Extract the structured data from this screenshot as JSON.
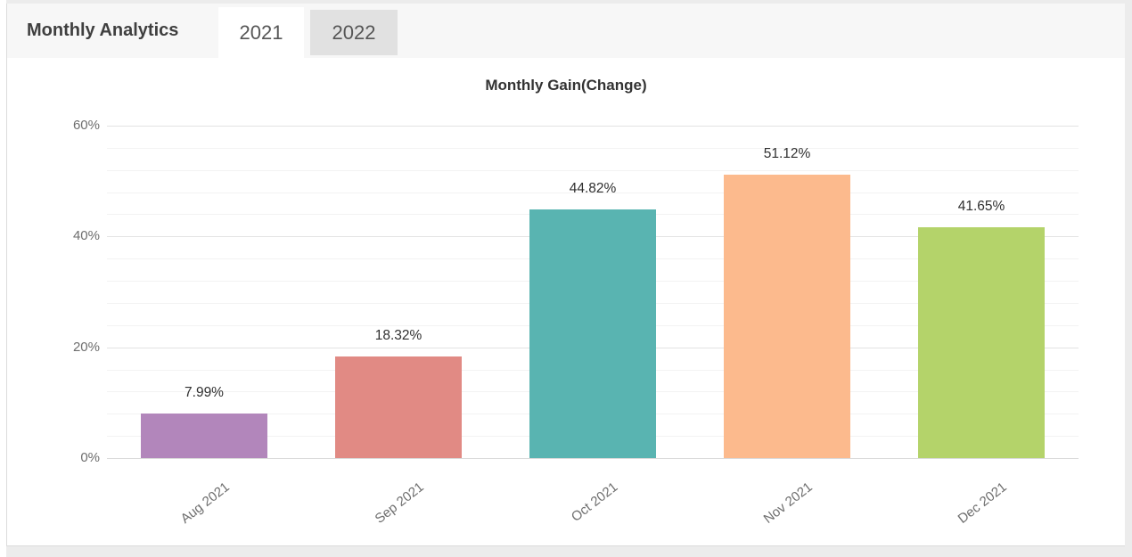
{
  "header": {
    "title": "Monthly Analytics",
    "tabs": [
      {
        "label": "2021",
        "active": true
      },
      {
        "label": "2022",
        "active": false
      }
    ]
  },
  "chart_data": {
    "type": "bar",
    "title": "Monthly Gain(Change)",
    "categories": [
      "Aug 2021",
      "Sep 2021",
      "Oct 2021",
      "Nov 2021",
      "Dec 2021"
    ],
    "values": [
      7.99,
      18.32,
      44.82,
      51.12,
      41.65
    ],
    "value_labels": [
      "7.99%",
      "18.32%",
      "44.82%",
      "51.12%",
      "41.65%"
    ],
    "bar_colors": [
      "#B286BB",
      "#E18A84",
      "#59B4B1",
      "#FCBA8D",
      "#B4D36A"
    ],
    "y_ticks": [
      {
        "pct": 0,
        "label": "0%"
      },
      {
        "pct": 20,
        "label": "20%"
      },
      {
        "pct": 40,
        "label": "40%"
      },
      {
        "pct": 60,
        "label": "60%"
      }
    ],
    "ylim": [
      0,
      60
    ],
    "y_major_step": 20,
    "y_minor_step": 4,
    "grid": true,
    "legend": "none",
    "xlabel": "",
    "ylabel": ""
  },
  "colors": {
    "header_bg": "#f7f7f7",
    "active_tab_bg": "#ffffff",
    "inactive_tab_bg": "#e1e1e1",
    "grid_major": "#e3e3e3",
    "grid_minor": "#f3f3f3",
    "axis_text": "#6e6e6e"
  }
}
